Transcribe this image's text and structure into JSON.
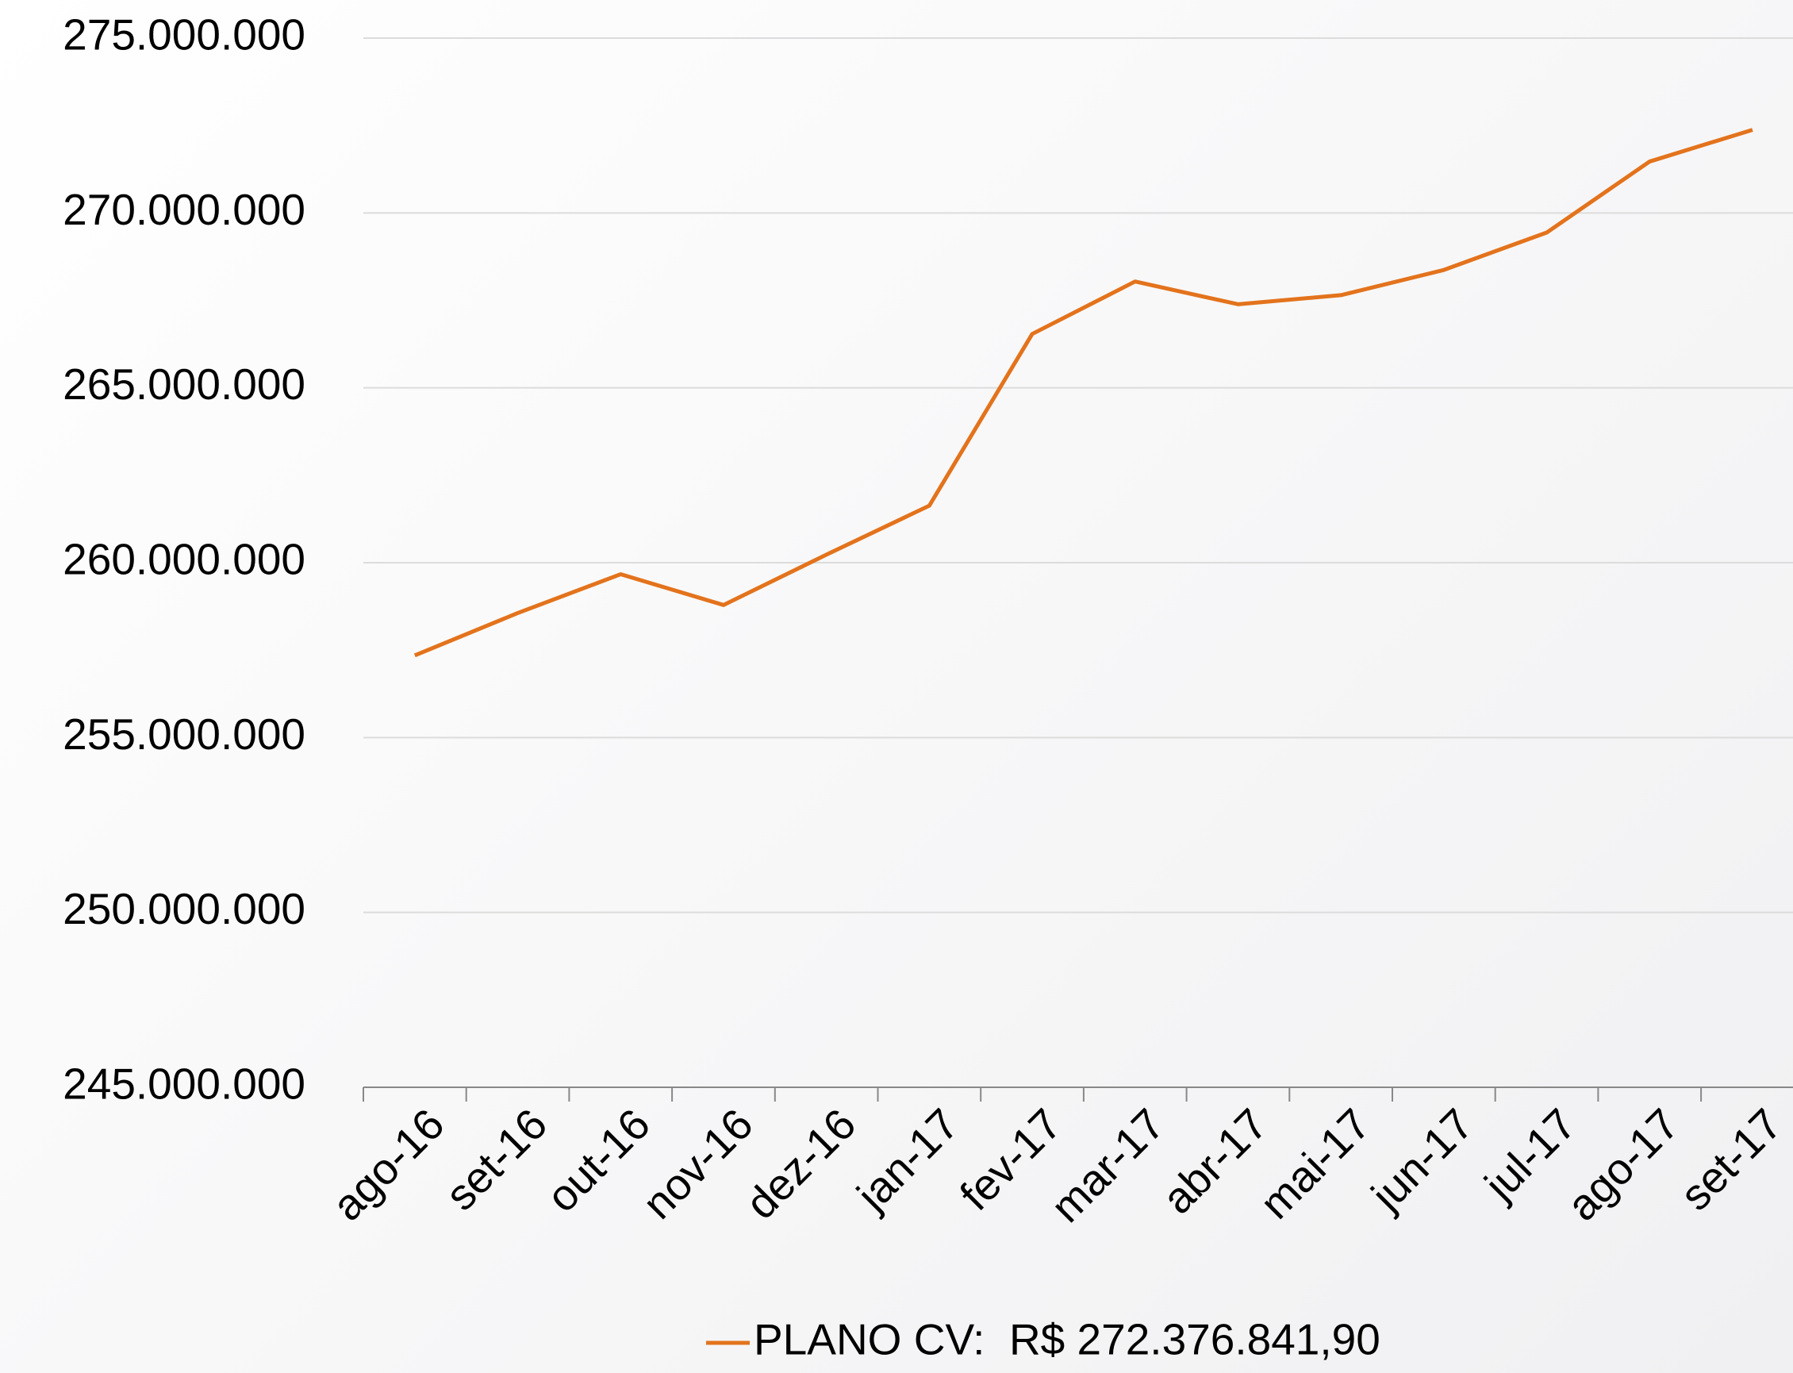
{
  "chart_data": {
    "type": "line",
    "categories": [
      "ago-16",
      "set-16",
      "out-16",
      "nov-16",
      "dez-16",
      "jan-17",
      "fev-17",
      "mar-17",
      "abr-17",
      "mai-17",
      "jun-17",
      "jul-17",
      "ago-17",
      "set-17"
    ],
    "series": [
      {
        "name": "PLANO CV:  R$ 272.376.841,90",
        "color": "#e3731c",
        "values": [
          257350000,
          258560000,
          259670000,
          258790000,
          260230000,
          261630000,
          266540000,
          268040000,
          267390000,
          267650000,
          268370000,
          269440000,
          271470000,
          272376842
        ]
      }
    ],
    "ylim": [
      245000000,
      275000000
    ],
    "yticks": [
      {
        "value": 245000000,
        "label": "245.000.000"
      },
      {
        "value": 250000000,
        "label": "250.000.000"
      },
      {
        "value": 255000000,
        "label": "255.000.000"
      },
      {
        "value": 260000000,
        "label": "260.000.000"
      },
      {
        "value": 265000000,
        "label": "265.000.000"
      },
      {
        "value": 270000000,
        "label": "270.000.000"
      },
      {
        "value": 275000000,
        "label": "275.000.000"
      }
    ],
    "grid": true,
    "legend": "bottom"
  }
}
